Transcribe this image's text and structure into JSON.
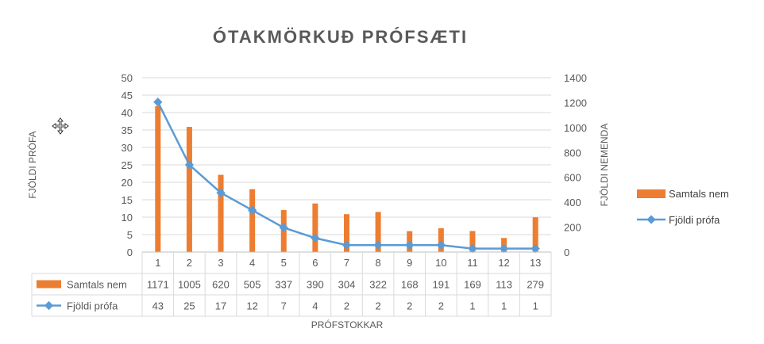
{
  "chart_data": {
    "type": "bar",
    "title": "ÓTAKMÖRKUÐ PRÓFSÆTI",
    "xlabel": "PRÓFSTOKKAR",
    "ylabel_left": "FJÖLDI PRÓFA",
    "ylabel_right": "FJÖLDI NEMENDA",
    "categories": [
      "1",
      "2",
      "3",
      "4",
      "5",
      "6",
      "7",
      "8",
      "9",
      "10",
      "11",
      "12",
      "13"
    ],
    "left_axis": {
      "ylim": [
        0,
        50
      ],
      "ticks": [
        "0",
        "5",
        "10",
        "15",
        "20",
        "25",
        "30",
        "35",
        "40",
        "45",
        "50"
      ]
    },
    "right_axis": {
      "ylim": [
        0,
        1400
      ],
      "ticks": [
        "0",
        "200",
        "400",
        "600",
        "800",
        "1000",
        "1200",
        "1400"
      ]
    },
    "series": [
      {
        "name": "Samtals nem",
        "type": "bar",
        "axis": "right",
        "color": "#ED7D31",
        "values": [
          1171,
          1005,
          620,
          505,
          337,
          390,
          304,
          322,
          168,
          191,
          169,
          113,
          279
        ],
        "labels": [
          "1171",
          "1005",
          "620",
          "505",
          "337",
          "390",
          "304",
          "322",
          "168",
          "191",
          "169",
          "113",
          "279"
        ]
      },
      {
        "name": "Fjöldi prófa",
        "type": "line",
        "axis": "left",
        "color": "#5B9BD5",
        "values": [
          43,
          25,
          17,
          12,
          7,
          4,
          2,
          2,
          2,
          2,
          1,
          1,
          1
        ],
        "labels": [
          "43",
          "25",
          "17",
          "12",
          "7",
          "4",
          "2",
          "2",
          "2",
          "2",
          "1",
          "1",
          "1"
        ]
      }
    ],
    "grid": true,
    "legend_position": "right",
    "data_table": true
  }
}
